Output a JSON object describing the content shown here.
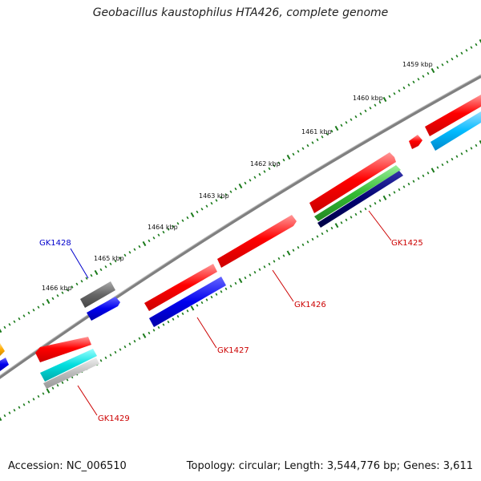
{
  "title": "Geobacillus kaustophilus HTA426, complete genome",
  "footer": {
    "accession_label": "Accession:",
    "accession": "NC_006510",
    "topology_label": "Topology:",
    "topology": "circular",
    "length_label": "Length:",
    "length": "3,544,776 bp",
    "genes_label": "Genes:",
    "genes": "3,611"
  },
  "scale_labels": [
    "1459 kbp",
    "1460 kbp",
    "1461 kbp",
    "1462 kbp",
    "1463 kbp",
    "1464 kbp",
    "1465 kbp",
    "1466 kbp"
  ],
  "gene_labels": [
    {
      "name": "GK1425",
      "color": "#cc0000"
    },
    {
      "name": "GK1426",
      "color": "#cc0000"
    },
    {
      "name": "GK1427",
      "color": "#cc0000"
    },
    {
      "name": "GK1428",
      "color": "#0000cc"
    },
    {
      "name": "GK1429",
      "color": "#cc0000"
    }
  ],
  "colors": {
    "backbone": "#808080",
    "tick": "#1a7a1a",
    "gene_red": "#ff0000",
    "gene_blue": "#0000ee",
    "gene_navy": "#000070",
    "gene_green": "#33bb33",
    "gene_cyan": "#00dddd",
    "gene_skyblue": "#00bbff",
    "gene_gray": "#666666",
    "gene_lightgray": "#bbbbbb",
    "gene_orange": "#ffaa00"
  }
}
